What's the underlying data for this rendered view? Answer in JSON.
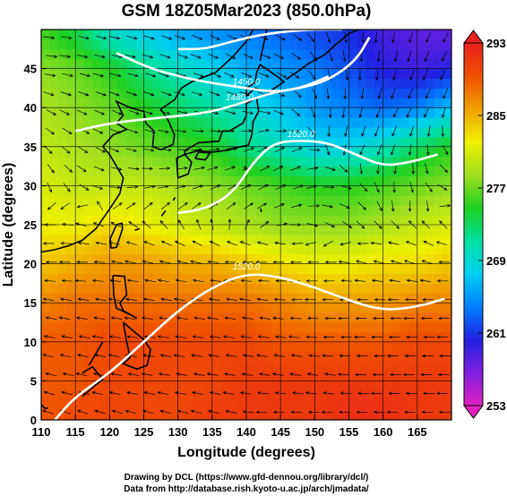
{
  "chart_data": {
    "type": "heatmap",
    "title": "GSM 18Z05Mar2023 (850.0hPa)",
    "xlabel": "Longitude (degrees)",
    "ylabel": "Latitude  (degrees)",
    "xlim": [
      110,
      170
    ],
    "ylim": [
      0,
      50
    ],
    "x_ticks": [
      110,
      115,
      120,
      125,
      130,
      135,
      140,
      145,
      150,
      155,
      160,
      165
    ],
    "y_ticks": [
      0,
      5,
      10,
      15,
      20,
      25,
      30,
      35,
      40,
      45
    ],
    "grid": true,
    "colorbar": {
      "range": [
        253,
        293
      ],
      "ticks": [
        253,
        261,
        269,
        277,
        285,
        293
      ],
      "position": "right"
    },
    "temperature_field": [
      {
        "lat": 49,
        "values": [
          276,
          274,
          270,
          268,
          266,
          265,
          264,
          263,
          262,
          261,
          259,
          258,
          258
        ]
      },
      {
        "lat": 45,
        "values": [
          278,
          277,
          275,
          272,
          270,
          268,
          266,
          265,
          264,
          262,
          260,
          259,
          260
        ]
      },
      {
        "lat": 40,
        "values": [
          279,
          278,
          277,
          275,
          273,
          271,
          269,
          267,
          265,
          264,
          263,
          264,
          267
        ]
      },
      {
        "lat": 35,
        "values": [
          280,
          279,
          278,
          277,
          276,
          275,
          272,
          270,
          268,
          268,
          270,
          273,
          275
        ]
      },
      {
        "lat": 30,
        "values": [
          281,
          280,
          280,
          280,
          279,
          278,
          277,
          276,
          275,
          275,
          276,
          277,
          278
        ]
      },
      {
        "lat": 25,
        "values": [
          282,
          282,
          283,
          282,
          281,
          280,
          279,
          278,
          278,
          278,
          279,
          280,
          281
        ]
      },
      {
        "lat": 20,
        "values": [
          284,
          285,
          286,
          286,
          285,
          285,
          284,
          283,
          282,
          282,
          283,
          283,
          284
        ]
      },
      {
        "lat": 15,
        "values": [
          287,
          288,
          288,
          288,
          288,
          288,
          288,
          287,
          286,
          286,
          286,
          287,
          287
        ]
      },
      {
        "lat": 10,
        "values": [
          289,
          289,
          290,
          290,
          290,
          290,
          290,
          289,
          289,
          289,
          289,
          290,
          290
        ]
      },
      {
        "lat": 5,
        "values": [
          289,
          289,
          290,
          290,
          290,
          290,
          291,
          291,
          291,
          291,
          291,
          291,
          291
        ]
      },
      {
        "lat": 0,
        "values": [
          289,
          290,
          290,
          290,
          290,
          291,
          291,
          291,
          291,
          292,
          292,
          291,
          291
        ]
      }
    ],
    "temperature_field_lons": [
      110,
      115,
      120,
      125,
      130,
      135,
      140,
      145,
      150,
      155,
      160,
      165,
      170
    ],
    "contours": [
      {
        "label": "1450.0",
        "points": [
          [
            121,
            47
          ],
          [
            126,
            45
          ],
          [
            131,
            43.8
          ],
          [
            136,
            43
          ],
          [
            140,
            42.5
          ],
          [
            144,
            42
          ],
          [
            148,
            42.5
          ],
          [
            152,
            44
          ]
        ]
      },
      {
        "label": "1480.0",
        "points": [
          [
            115,
            37
          ],
          [
            120,
            38
          ],
          [
            125,
            38.5
          ],
          [
            131,
            39
          ],
          [
            135,
            39.5
          ],
          [
            139,
            40.5
          ],
          [
            144,
            42
          ],
          [
            148,
            42.5
          ],
          [
            152,
            43.5
          ],
          [
            156,
            46
          ],
          [
            158,
            49
          ]
        ]
      },
      {
        "label": "1490.0",
        "points": [
          [
            130,
            47.5
          ],
          [
            134,
            47.5
          ],
          [
            138,
            48.5
          ],
          [
            143,
            49.5
          ],
          [
            149,
            50
          ],
          [
            154,
            50
          ]
        ]
      },
      {
        "label": "1520.0",
        "points": [
          [
            130,
            26.5
          ],
          [
            134,
            27
          ],
          [
            138,
            29
          ],
          [
            141,
            33
          ],
          [
            144,
            35.5
          ],
          [
            148,
            35.8
          ],
          [
            152,
            35.5
          ],
          [
            156,
            34
          ],
          [
            160,
            32.5
          ],
          [
            164,
            33
          ],
          [
            168,
            34
          ]
        ]
      },
      {
        "label": "1520.0",
        "points": [
          [
            112,
            0
          ],
          [
            115,
            3
          ],
          [
            120,
            6
          ],
          [
            125,
            10
          ],
          [
            130,
            14
          ],
          [
            135,
            17
          ],
          [
            140,
            18.8
          ],
          [
            145,
            18.3
          ],
          [
            150,
            17
          ],
          [
            155,
            15.3
          ],
          [
            160,
            14
          ],
          [
            165,
            14.5
          ],
          [
            169,
            15.5
          ]
        ]
      }
    ],
    "contour_labels": [
      "1450.0",
      "1480.0",
      "1490.0",
      "1520.0",
      "1520.0"
    ],
    "wind_vectors": [
      {
        "lat": 45,
        "u": [
          8,
          8,
          9,
          9,
          8,
          6,
          5,
          3,
          1,
          0,
          -1,
          -2,
          -2
        ],
        "v": [
          -1,
          -2,
          -2,
          -3,
          -3,
          -3,
          -2,
          -2,
          -3,
          -4,
          -5,
          -5,
          -4
        ]
      },
      {
        "lat": 40,
        "u": [
          6,
          7,
          7,
          8,
          8,
          6,
          4,
          2,
          0,
          -1,
          -2,
          -2,
          -1
        ],
        "v": [
          -3,
          -3,
          -3,
          -3,
          -2,
          -2,
          -1,
          -2,
          -3,
          -4,
          -4,
          -4,
          -3
        ]
      },
      {
        "lat": 35,
        "u": [
          3,
          5,
          6,
          7,
          7,
          6,
          4,
          2,
          0,
          -1,
          -1,
          0,
          1
        ],
        "v": [
          -3,
          -3,
          -2,
          -1,
          0,
          1,
          2,
          1,
          -1,
          -2,
          -3,
          -3,
          -2
        ]
      },
      {
        "lat": 30,
        "u": [
          1,
          2,
          4,
          6,
          7,
          7,
          6,
          5,
          3,
          1,
          0,
          1,
          2
        ],
        "v": [
          -2,
          -1,
          0,
          1,
          2,
          3,
          3,
          2,
          0,
          -1,
          -2,
          -2,
          -1
        ]
      },
      {
        "lat": 25,
        "u": [
          -3,
          -3,
          -2,
          -2,
          -1,
          0,
          1,
          2,
          2,
          1,
          0,
          -1,
          -1
        ],
        "v": [
          0,
          1,
          1,
          2,
          2,
          2,
          1,
          0,
          -1,
          -1,
          0,
          1,
          1
        ]
      },
      {
        "lat": 20,
        "u": [
          -5,
          -6,
          -6,
          -6,
          -5,
          -5,
          -5,
          -4,
          -4,
          -4,
          -4,
          -3,
          -3
        ],
        "v": [
          0,
          0,
          1,
          1,
          1,
          0,
          0,
          0,
          0,
          1,
          1,
          1,
          0
        ]
      },
      {
        "lat": 15,
        "u": [
          -6,
          -7,
          -7,
          -7,
          -7,
          -7,
          -6,
          -6,
          -6,
          -6,
          -5,
          -5,
          -5
        ],
        "v": [
          1,
          1,
          1,
          1,
          1,
          1,
          1,
          0,
          0,
          0,
          0,
          0,
          0
        ]
      },
      {
        "lat": 10,
        "u": [
          -5,
          -6,
          -7,
          -7,
          -7,
          -7,
          -7,
          -7,
          -6,
          -6,
          -6,
          -6,
          -5
        ],
        "v": [
          1,
          1,
          1,
          1,
          1,
          1,
          1,
          1,
          0,
          0,
          0,
          0,
          0
        ]
      },
      {
        "lat": 5,
        "u": [
          -4,
          -5,
          -5,
          -6,
          -6,
          -6,
          -6,
          -6,
          -5,
          -5,
          -5,
          -4,
          -4
        ],
        "v": [
          1,
          1,
          1,
          1,
          1,
          1,
          1,
          1,
          1,
          0,
          0,
          0,
          0
        ]
      },
      {
        "lat": 1,
        "u": [
          -3,
          -3,
          -4,
          -4,
          -4,
          -4,
          -4,
          -4,
          -4,
          -3,
          -3,
          -3,
          -3
        ],
        "v": [
          1,
          1,
          1,
          1,
          1,
          1,
          0,
          0,
          0,
          0,
          0,
          0,
          0
        ]
      }
    ],
    "wind_lons": [
      112,
      117,
      122,
      127,
      132,
      137,
      142,
      147,
      152,
      157,
      162,
      166,
      169
    ]
  },
  "colors": {
    "colorbar_stops": [
      "#e020c0",
      "#8020e0",
      "#2020e0",
      "#0080ff",
      "#00d0f0",
      "#00e0a0",
      "#20d020",
      "#a0e020",
      "#f0f000",
      "#f0a000",
      "#f05000",
      "#e82020"
    ],
    "contour": "#ffffff",
    "arrows": "#000000",
    "coast": "#000000"
  },
  "credits": {
    "line1": "Drawing by DCL (https://www.gfd-dennou.org/library/dcl/)",
    "line2": "Data from http://database.rish.kyoto-u.ac.jp/arch/jmadata/"
  }
}
